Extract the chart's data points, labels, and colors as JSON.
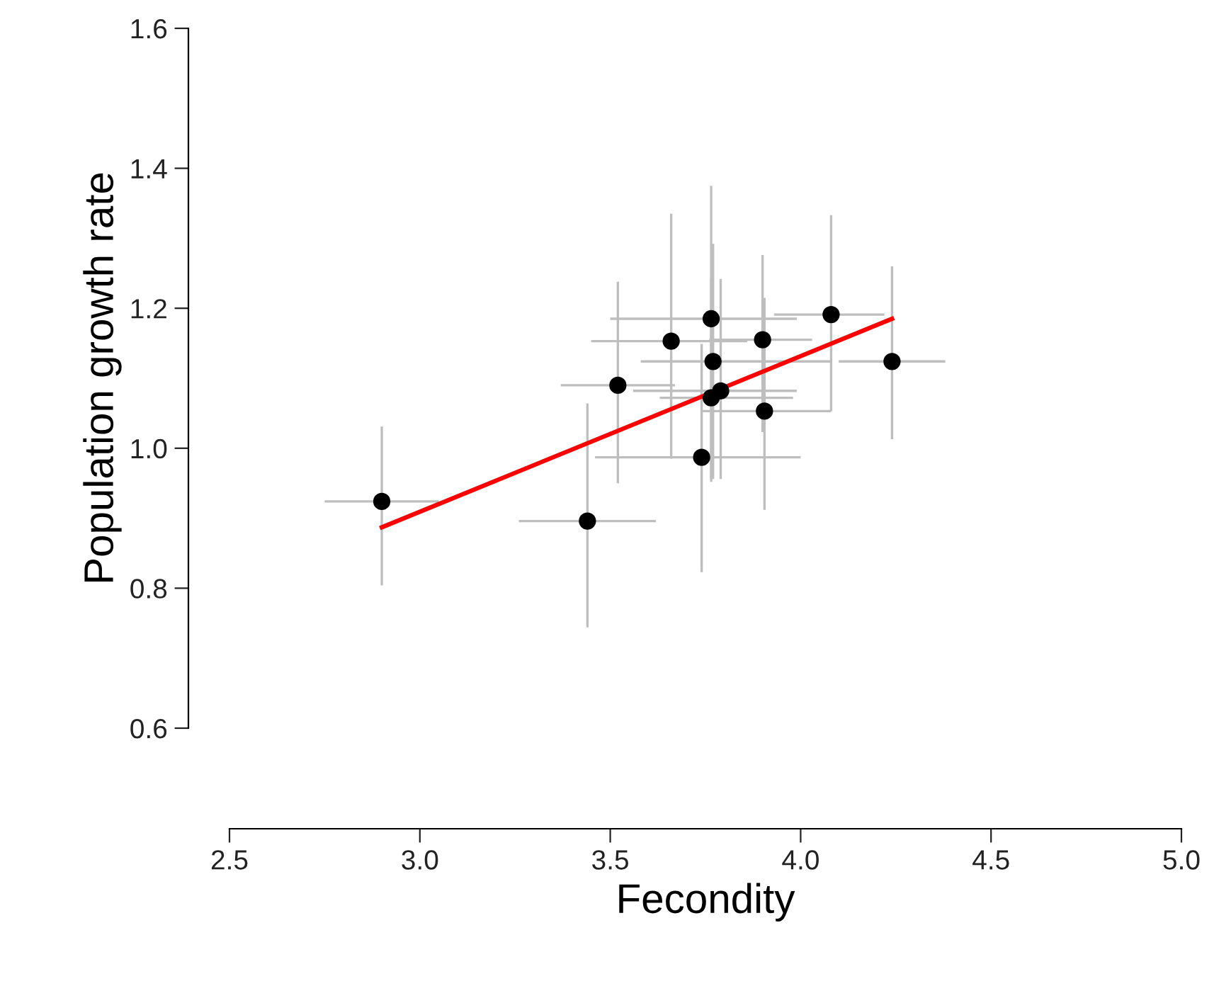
{
  "chart_data": {
    "type": "scatter",
    "xlabel": "Fecondity",
    "ylabel": "Population growth rate",
    "xlim": [
      2.5,
      5.0
    ],
    "xticks": [
      {
        "value": 2.5,
        "label": "2.5"
      },
      {
        "value": 3.0,
        "label": "3.0"
      },
      {
        "value": 3.5,
        "label": "3.5"
      },
      {
        "value": 4.0,
        "label": "4.0"
      },
      {
        "value": 4.5,
        "label": "4.5"
      },
      {
        "value": 5.0,
        "label": "5.0"
      }
    ],
    "ylim": [
      0.6,
      1.6
    ],
    "yticks": [
      {
        "value": 0.6,
        "label": "0.6"
      },
      {
        "value": 0.8,
        "label": "0.8"
      },
      {
        "value": 1.0,
        "label": "1.0"
      },
      {
        "value": 1.2,
        "label": "1.2"
      },
      {
        "value": 1.4,
        "label": "1.4"
      },
      {
        "value": 1.6,
        "label": "1.6"
      }
    ],
    "grid": false,
    "legend": false,
    "series": [
      {
        "color": "#000000",
        "marker": "circle",
        "x": [
          2.9,
          3.44,
          3.52,
          3.66,
          3.765,
          3.77,
          3.765,
          3.79,
          3.74,
          3.9,
          3.905,
          4.08,
          4.24
        ],
        "values": [
          0.924,
          0.896,
          1.09,
          1.153,
          1.185,
          1.124,
          1.072,
          1.082,
          0.987,
          1.155,
          1.053,
          1.191,
          1.124
        ],
        "errors": [
          [
            0.804,
            1.031
          ],
          [
            0.744,
            1.064
          ],
          [
            0.95,
            1.238
          ],
          [
            0.985,
            1.335
          ],
          [
            0.956,
            1.375
          ],
          [
            0.956,
            1.292
          ],
          [
            0.952,
            1.242
          ],
          [
            0.956,
            1.242
          ],
          [
            0.823,
            1.149
          ],
          [
            1.023,
            1.276
          ],
          [
            0.912,
            1.215
          ],
          [
            1.053,
            1.333
          ],
          [
            1.013,
            1.26
          ]
        ],
        "xerrors": [
          [
            2.75,
            3.05
          ],
          [
            3.26,
            3.62
          ],
          [
            3.37,
            3.67
          ],
          [
            3.45,
            3.86
          ],
          [
            3.5,
            3.99
          ],
          [
            3.58,
            4.08
          ],
          [
            3.63,
            3.98
          ],
          [
            3.56,
            3.99
          ],
          [
            3.46,
            4.0
          ],
          [
            3.76,
            4.03
          ],
          [
            3.74,
            4.08
          ],
          [
            3.93,
            4.22
          ],
          [
            4.1,
            4.38
          ]
        ]
      },
      {
        "type": "line",
        "color": "#ff0000",
        "marker": "none",
        "line_style": "solid",
        "x": [
          2.9,
          4.24
        ],
        "values": [
          0.887,
          1.185
        ]
      }
    ]
  }
}
